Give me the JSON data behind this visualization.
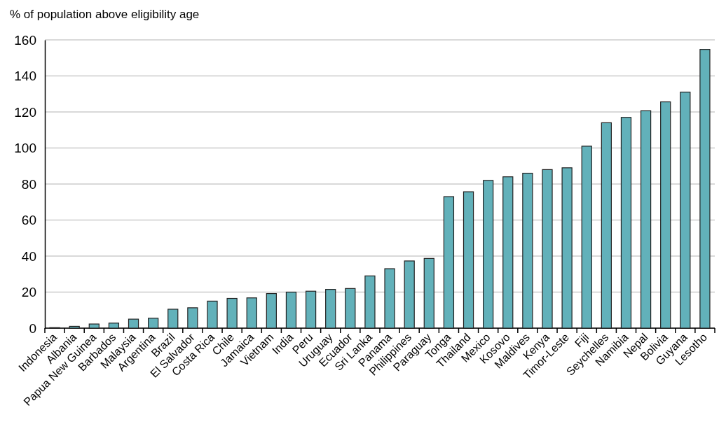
{
  "chart_data": {
    "type": "bar",
    "ylabel": "% of population above eligibility age",
    "categories": [
      "Indonesia",
      "Albania",
      "Papua New Guinea",
      "Barbados",
      "Malaysia",
      "Argentina",
      "Brazil",
      "El Salvador",
      "Costa Rica",
      "Chile",
      "Jamaica",
      "Vietnam",
      "India",
      "Peru",
      "Uruguay",
      "Ecuador",
      "Sri Lanka",
      "Panama",
      "Philippines",
      "Paraguay",
      "Tonga",
      "Thailand",
      "Mexico",
      "Kosovo",
      "Maldives",
      "Kenya",
      "Timor-Leste",
      "Fiji",
      "Seychelles",
      "Namibia",
      "Nepal",
      "Bolivia",
      "Guyana",
      "Lesotho"
    ],
    "values": [
      0.3,
      1,
      2.3,
      2.8,
      5,
      5.5,
      10.5,
      11.3,
      15,
      16.5,
      16.8,
      19.2,
      20,
      20.5,
      21.5,
      22,
      29,
      33,
      37.3,
      38.7,
      73,
      75.7,
      82,
      84,
      86,
      88,
      89,
      101,
      114,
      117,
      120.7,
      125.6,
      131,
      154.7
    ],
    "color": "#62b1ba",
    "ylim": [
      0,
      160
    ],
    "yticks": [
      0,
      20,
      40,
      60,
      80,
      100,
      120,
      140,
      160
    ],
    "grid": "y"
  }
}
